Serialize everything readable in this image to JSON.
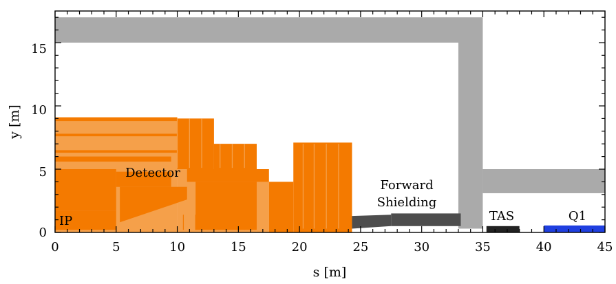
{
  "axes": {
    "xlabel": "s [m]",
    "ylabel": "y [m]",
    "xlim": [
      0,
      45
    ],
    "ylim": [
      0,
      17.5
    ],
    "x_major_ticks": [
      0,
      5,
      10,
      15,
      20,
      25,
      30,
      35,
      40,
      45
    ],
    "y_major_ticks": [
      0,
      5,
      10,
      15
    ],
    "x_tick_labels": [
      "0",
      "5",
      "10",
      "15",
      "20",
      "25",
      "30",
      "35",
      "40",
      "45"
    ],
    "y_tick_labels": [
      "0",
      "5",
      "10",
      "15"
    ]
  },
  "labels": {
    "ip": "IP",
    "detector": "Detector",
    "forward_line1": "Forward",
    "forward_line2": "Shielding",
    "tas": "TAS",
    "q1": "Q1"
  },
  "colors": {
    "wall": "#aaaaaa",
    "detector_light": "#f5a04a",
    "detector_dark": "#f47a00",
    "shield_dark": "#4d4d4d",
    "tas": "#222222",
    "q1": "#1f3fe0"
  }
}
